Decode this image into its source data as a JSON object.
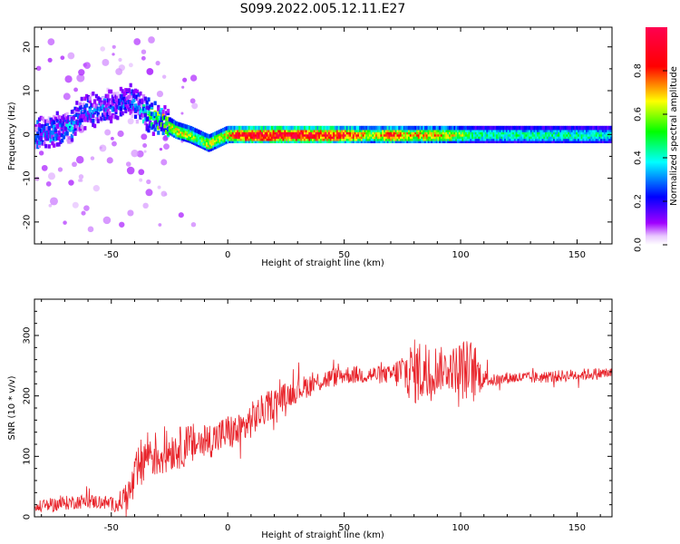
{
  "title": "S099.2022.005.12.11.E27",
  "chart_data": [
    {
      "type": "heatmap",
      "xlabel": "Height of straight line (km)",
      "ylabel": "Frequency (Hz)",
      "xlim": [
        -83,
        165
      ],
      "ylim": [
        -25,
        24.5
      ],
      "xticks": [
        -50,
        0,
        50,
        100,
        150
      ],
      "yticks": [
        -20,
        -10,
        0,
        10,
        20
      ],
      "grid": false,
      "colorbar": {
        "label": "Normalized spectral amplitude",
        "range": [
          0,
          1
        ],
        "ticks": [
          "0.0",
          "0.2",
          "0.4",
          "0.6",
          "0.8"
        ],
        "colormap": "gist_rainbow (violet → blue → cyan → green → yellow → red → magenta)",
        "colors": [
          "#ffffff",
          "#a000ff",
          "#0000ff",
          "#00ffff",
          "#00ff00",
          "#ffff00",
          "#ff0000",
          "#ff0050"
        ]
      },
      "ridge": {
        "description": "spectral ridge of normalized amplitude, frequency centre vs height",
        "heights_km": [
          -83,
          -75,
          -68,
          -62,
          -55,
          -48,
          -42,
          -38,
          -33,
          -28,
          -22,
          -16,
          -12,
          -8,
          -4,
          0,
          5,
          15,
          30,
          45,
          55,
          62,
          70,
          78,
          90,
          100,
          105,
          115,
          130,
          150,
          165
        ],
        "center_hz": [
          0,
          1,
          2,
          5,
          6,
          7,
          8,
          6,
          4,
          3,
          1,
          0,
          -1,
          -2,
          -1,
          0,
          0,
          0,
          0,
          0,
          0,
          0,
          0,
          0,
          0,
          0,
          0,
          0,
          0,
          0,
          0
        ],
        "amplitude": [
          0.35,
          0.3,
          0.35,
          0.3,
          0.3,
          0.28,
          0.3,
          0.3,
          0.55,
          0.6,
          0.65,
          0.6,
          0.5,
          0.65,
          0.6,
          0.7,
          0.9,
          0.95,
          0.95,
          0.9,
          0.8,
          0.6,
          0.85,
          0.7,
          0.7,
          0.6,
          0.45,
          0.45,
          0.45,
          0.45,
          0.4
        ]
      }
    },
    {
      "type": "line",
      "xlabel": "Height of straight line (km)",
      "ylabel": "SNR (10 * v/v)",
      "xlim": [
        -83,
        165
      ],
      "ylim": [
        0,
        360
      ],
      "xticks": [
        -50,
        0,
        50,
        100,
        150
      ],
      "yticks": [
        0,
        100,
        200,
        300
      ],
      "grid": false,
      "color": "#e8232a",
      "series": [
        {
          "x": [
            -83,
            -75,
            -65,
            -55,
            -48,
            -42,
            -38,
            -34,
            -30,
            -25,
            -20,
            -15,
            -10,
            -5,
            0,
            5,
            10,
            15,
            20,
            25,
            30,
            40,
            50,
            60,
            70,
            75,
            80,
            85,
            90,
            95,
            100,
            105,
            110,
            115,
            120,
            130,
            140,
            150,
            160,
            165
          ],
          "y": [
            15,
            20,
            25,
            25,
            20,
            40,
            80,
            110,
            100,
            110,
            115,
            120,
            125,
            130,
            140,
            140,
            160,
            175,
            190,
            200,
            210,
            225,
            235,
            235,
            235,
            240,
            240,
            240,
            245,
            245,
            245,
            240,
            230,
            225,
            230,
            230,
            232,
            235,
            237,
            238
          ],
          "jitter": [
            10,
            12,
            12,
            12,
            12,
            30,
            45,
            40,
            40,
            35,
            35,
            35,
            30,
            30,
            30,
            30,
            30,
            28,
            25,
            22,
            20,
            18,
            15,
            15,
            15,
            35,
            55,
            55,
            40,
            30,
            50,
            55,
            15,
            10,
            10,
            10,
            10,
            10,
            10,
            10
          ]
        }
      ]
    }
  ]
}
